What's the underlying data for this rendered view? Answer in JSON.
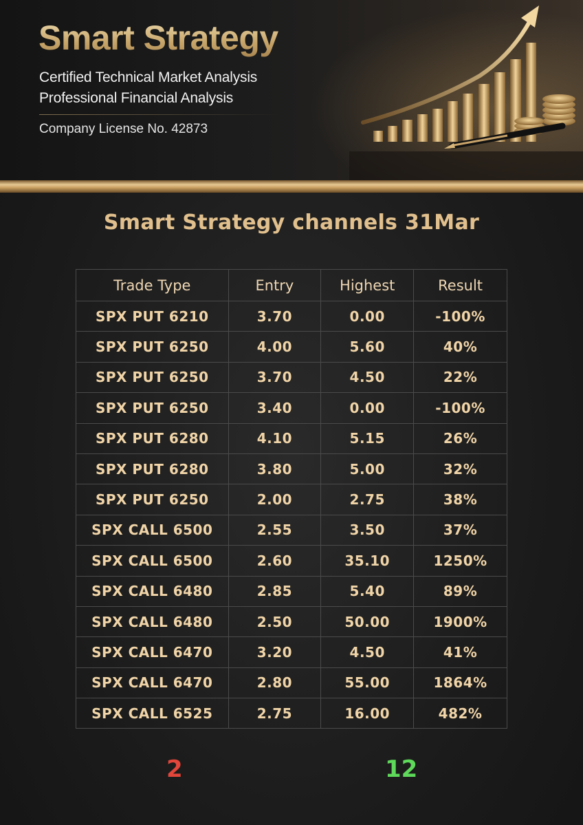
{
  "header": {
    "brand": "Smart Strategy",
    "line1": "Certified Technical Market Analysis",
    "line2": "Professional Financial Analysis",
    "license": "Company License No. 42873"
  },
  "heading": "Smart Strategy channels 31Mar",
  "table": {
    "columns": [
      "Trade Type",
      "Entry",
      "Highest",
      "Result"
    ],
    "rows": [
      {
        "type": "SPX PUT 6210",
        "entry": "3.70",
        "highest": "0.00",
        "result": "-100%",
        "status": "loss"
      },
      {
        "type": "SPX PUT 6250",
        "entry": "4.00",
        "highest": "5.60",
        "result": "40%",
        "status": "win"
      },
      {
        "type": "SPX PUT 6250",
        "entry": "3.70",
        "highest": "4.50",
        "result": "22%",
        "status": "win"
      },
      {
        "type": "SPX PUT 6250",
        "entry": "3.40",
        "highest": "0.00",
        "result": "-100%",
        "status": "loss"
      },
      {
        "type": "SPX PUT 6280",
        "entry": "4.10",
        "highest": "5.15",
        "result": "26%",
        "status": "win"
      },
      {
        "type": "SPX PUT 6280",
        "entry": "3.80",
        "highest": "5.00",
        "result": "32%",
        "status": "win"
      },
      {
        "type": "SPX PUT 6250",
        "entry": "2.00",
        "highest": "2.75",
        "result": "38%",
        "status": "win"
      },
      {
        "type": "SPX CALL 6500",
        "entry": "2.55",
        "highest": "3.50",
        "result": "37%",
        "status": "win"
      },
      {
        "type": "SPX CALL 6500",
        "entry": "2.60",
        "highest": "35.10",
        "result": "1250%",
        "status": "win"
      },
      {
        "type": "SPX CALL 6480",
        "entry": "2.85",
        "highest": "5.40",
        "result": "89%",
        "status": "win"
      },
      {
        "type": "SPX CALL 6480",
        "entry": "2.50",
        "highest": "50.00",
        "result": "1900%",
        "status": "win"
      },
      {
        "type": "SPX CALL 6470",
        "entry": "3.20",
        "highest": "4.50",
        "result": "41%",
        "status": "win"
      },
      {
        "type": "SPX CALL 6470",
        "entry": "2.80",
        "highest": "55.00",
        "result": "1864%",
        "status": "win"
      },
      {
        "type": "SPX CALL 6525",
        "entry": "2.75",
        "highest": "16.00",
        "result": "482%",
        "status": "win"
      }
    ]
  },
  "tally": {
    "losses": "2",
    "wins": "12"
  },
  "colors": {
    "gold": "#e1c08d",
    "loss": "#ff4a3a",
    "win": "#4cf04a"
  }
}
